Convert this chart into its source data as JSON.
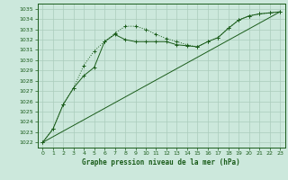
{
  "title": "Graphe pression niveau de la mer (hPa)",
  "background_color": "#cce8dc",
  "grid_color": "#aaccbb",
  "line_color": "#1a5c1a",
  "xlim": [
    -0.5,
    23.5
  ],
  "ylim": [
    1021.5,
    1035.5
  ],
  "yticks": [
    1022,
    1023,
    1024,
    1025,
    1026,
    1027,
    1028,
    1029,
    1030,
    1031,
    1032,
    1033,
    1034,
    1035
  ],
  "xticks": [
    0,
    1,
    2,
    3,
    4,
    5,
    6,
    7,
    8,
    9,
    10,
    11,
    12,
    13,
    14,
    15,
    16,
    17,
    18,
    19,
    20,
    21,
    22,
    23
  ],
  "series1_x": [
    0,
    1,
    2,
    3,
    4,
    5,
    6,
    7,
    8,
    9,
    10,
    11,
    12,
    13,
    14,
    15,
    16,
    17,
    18,
    19,
    20,
    21,
    22,
    23
  ],
  "series1_y": [
    1022.0,
    1023.3,
    1025.7,
    1027.3,
    1029.5,
    1030.9,
    1031.8,
    1032.6,
    1033.3,
    1033.3,
    1033.0,
    1032.5,
    1032.1,
    1031.8,
    1031.5,
    1031.3,
    1031.8,
    1032.2,
    1033.1,
    1033.9,
    1034.3,
    1034.5,
    1034.6,
    1034.7
  ],
  "series2_x": [
    0,
    1,
    2,
    3,
    4,
    5,
    6,
    7,
    8,
    9,
    10,
    11,
    12,
    13,
    14,
    15,
    16,
    17,
    18,
    19,
    20,
    21,
    22,
    23
  ],
  "series2_y": [
    1022.0,
    1023.3,
    1025.7,
    1027.3,
    1028.5,
    1029.3,
    1031.8,
    1032.5,
    1032.0,
    1031.8,
    1031.8,
    1031.8,
    1031.8,
    1031.5,
    1031.4,
    1031.3,
    1031.8,
    1032.2,
    1033.1,
    1033.9,
    1034.3,
    1034.5,
    1034.6,
    1034.7
  ],
  "series3_x": [
    0,
    23
  ],
  "series3_y": [
    1022.0,
    1034.7
  ]
}
